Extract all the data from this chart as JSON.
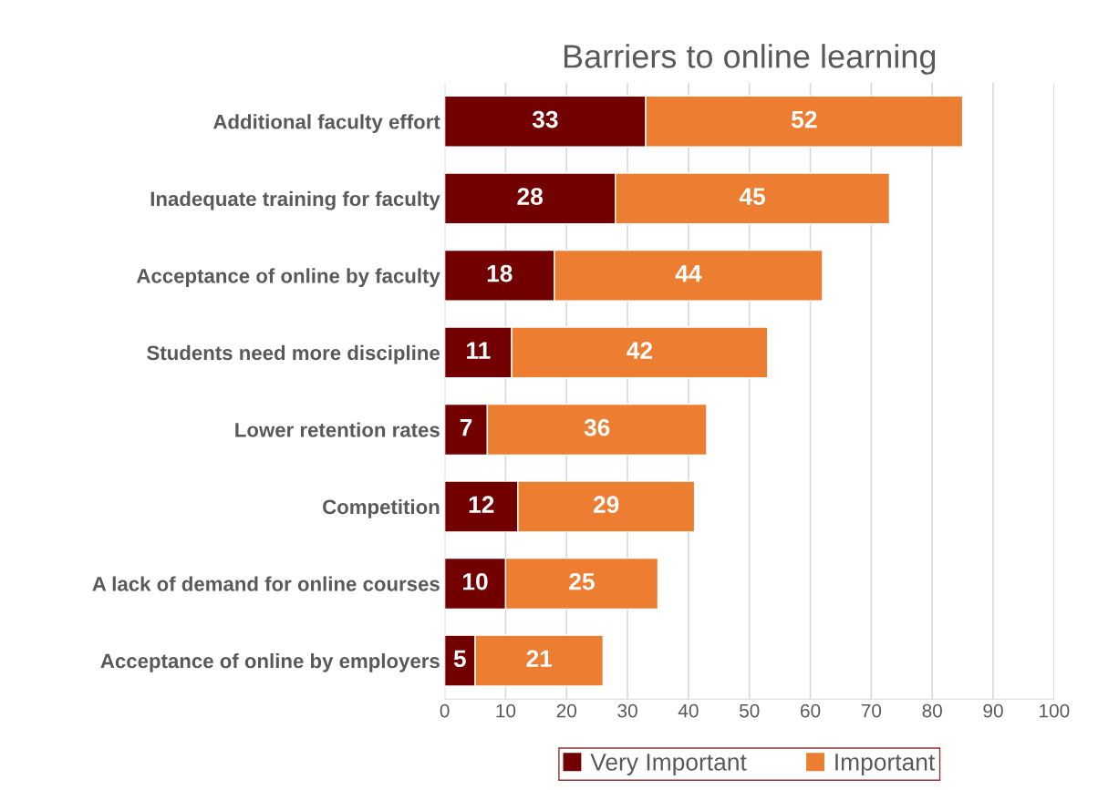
{
  "chart_data": {
    "type": "bar",
    "title": "Barriers to online learning",
    "orientation": "horizontal",
    "stacked": true,
    "categories": [
      "Additional faculty effort",
      "Inadequate training for faculty",
      "Acceptance of online by faculty",
      "Students need more discipline",
      "Lower retention rates",
      "Competition",
      "A lack of demand for online courses",
      "Acceptance of online by employers"
    ],
    "series": [
      {
        "name": "Very Important",
        "color": "#720000",
        "values": [
          33,
          28,
          18,
          11,
          7,
          12,
          10,
          5
        ]
      },
      {
        "name": "Important",
        "color": "#ed7d31",
        "values": [
          52,
          45,
          44,
          42,
          36,
          29,
          25,
          21
        ]
      }
    ],
    "xlim": [
      0,
      100
    ],
    "xticks": [
      0,
      10,
      20,
      30,
      40,
      50,
      60,
      70,
      80,
      90,
      100
    ],
    "grid": "x",
    "legend": "bottom",
    "data_labels": true
  }
}
